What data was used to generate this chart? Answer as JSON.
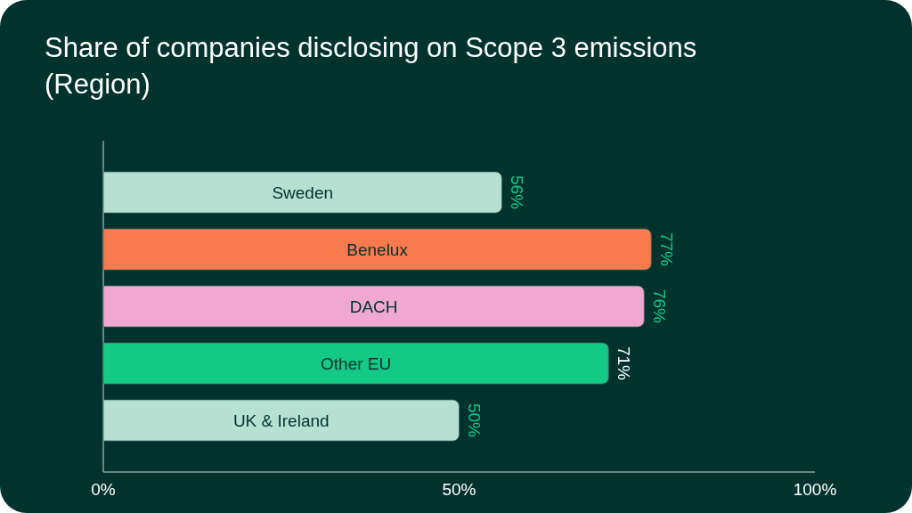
{
  "chart_data": {
    "type": "bar",
    "orientation": "horizontal",
    "title": "Share of companies disclosing on Scope 3 emissions (Region)",
    "categories": [
      "Sweden",
      "Benelux",
      "DACH",
      "Other EU",
      "UK & Ireland"
    ],
    "values": [
      56,
      77,
      76,
      71,
      50
    ],
    "colors": [
      "#b5e0d2",
      "#f87b4f",
      "#f0a8d0",
      "#14c886",
      "#b5e0d2"
    ],
    "xlim": [
      0,
      100
    ],
    "xticks": [
      {
        "value": 0,
        "label": "0%"
      },
      {
        "value": 50,
        "label": "50%"
      },
      {
        "value": 100,
        "label": "100%"
      }
    ],
    "value_labels": [
      "56%",
      "77%",
      "76%",
      "71%",
      "50%"
    ]
  }
}
